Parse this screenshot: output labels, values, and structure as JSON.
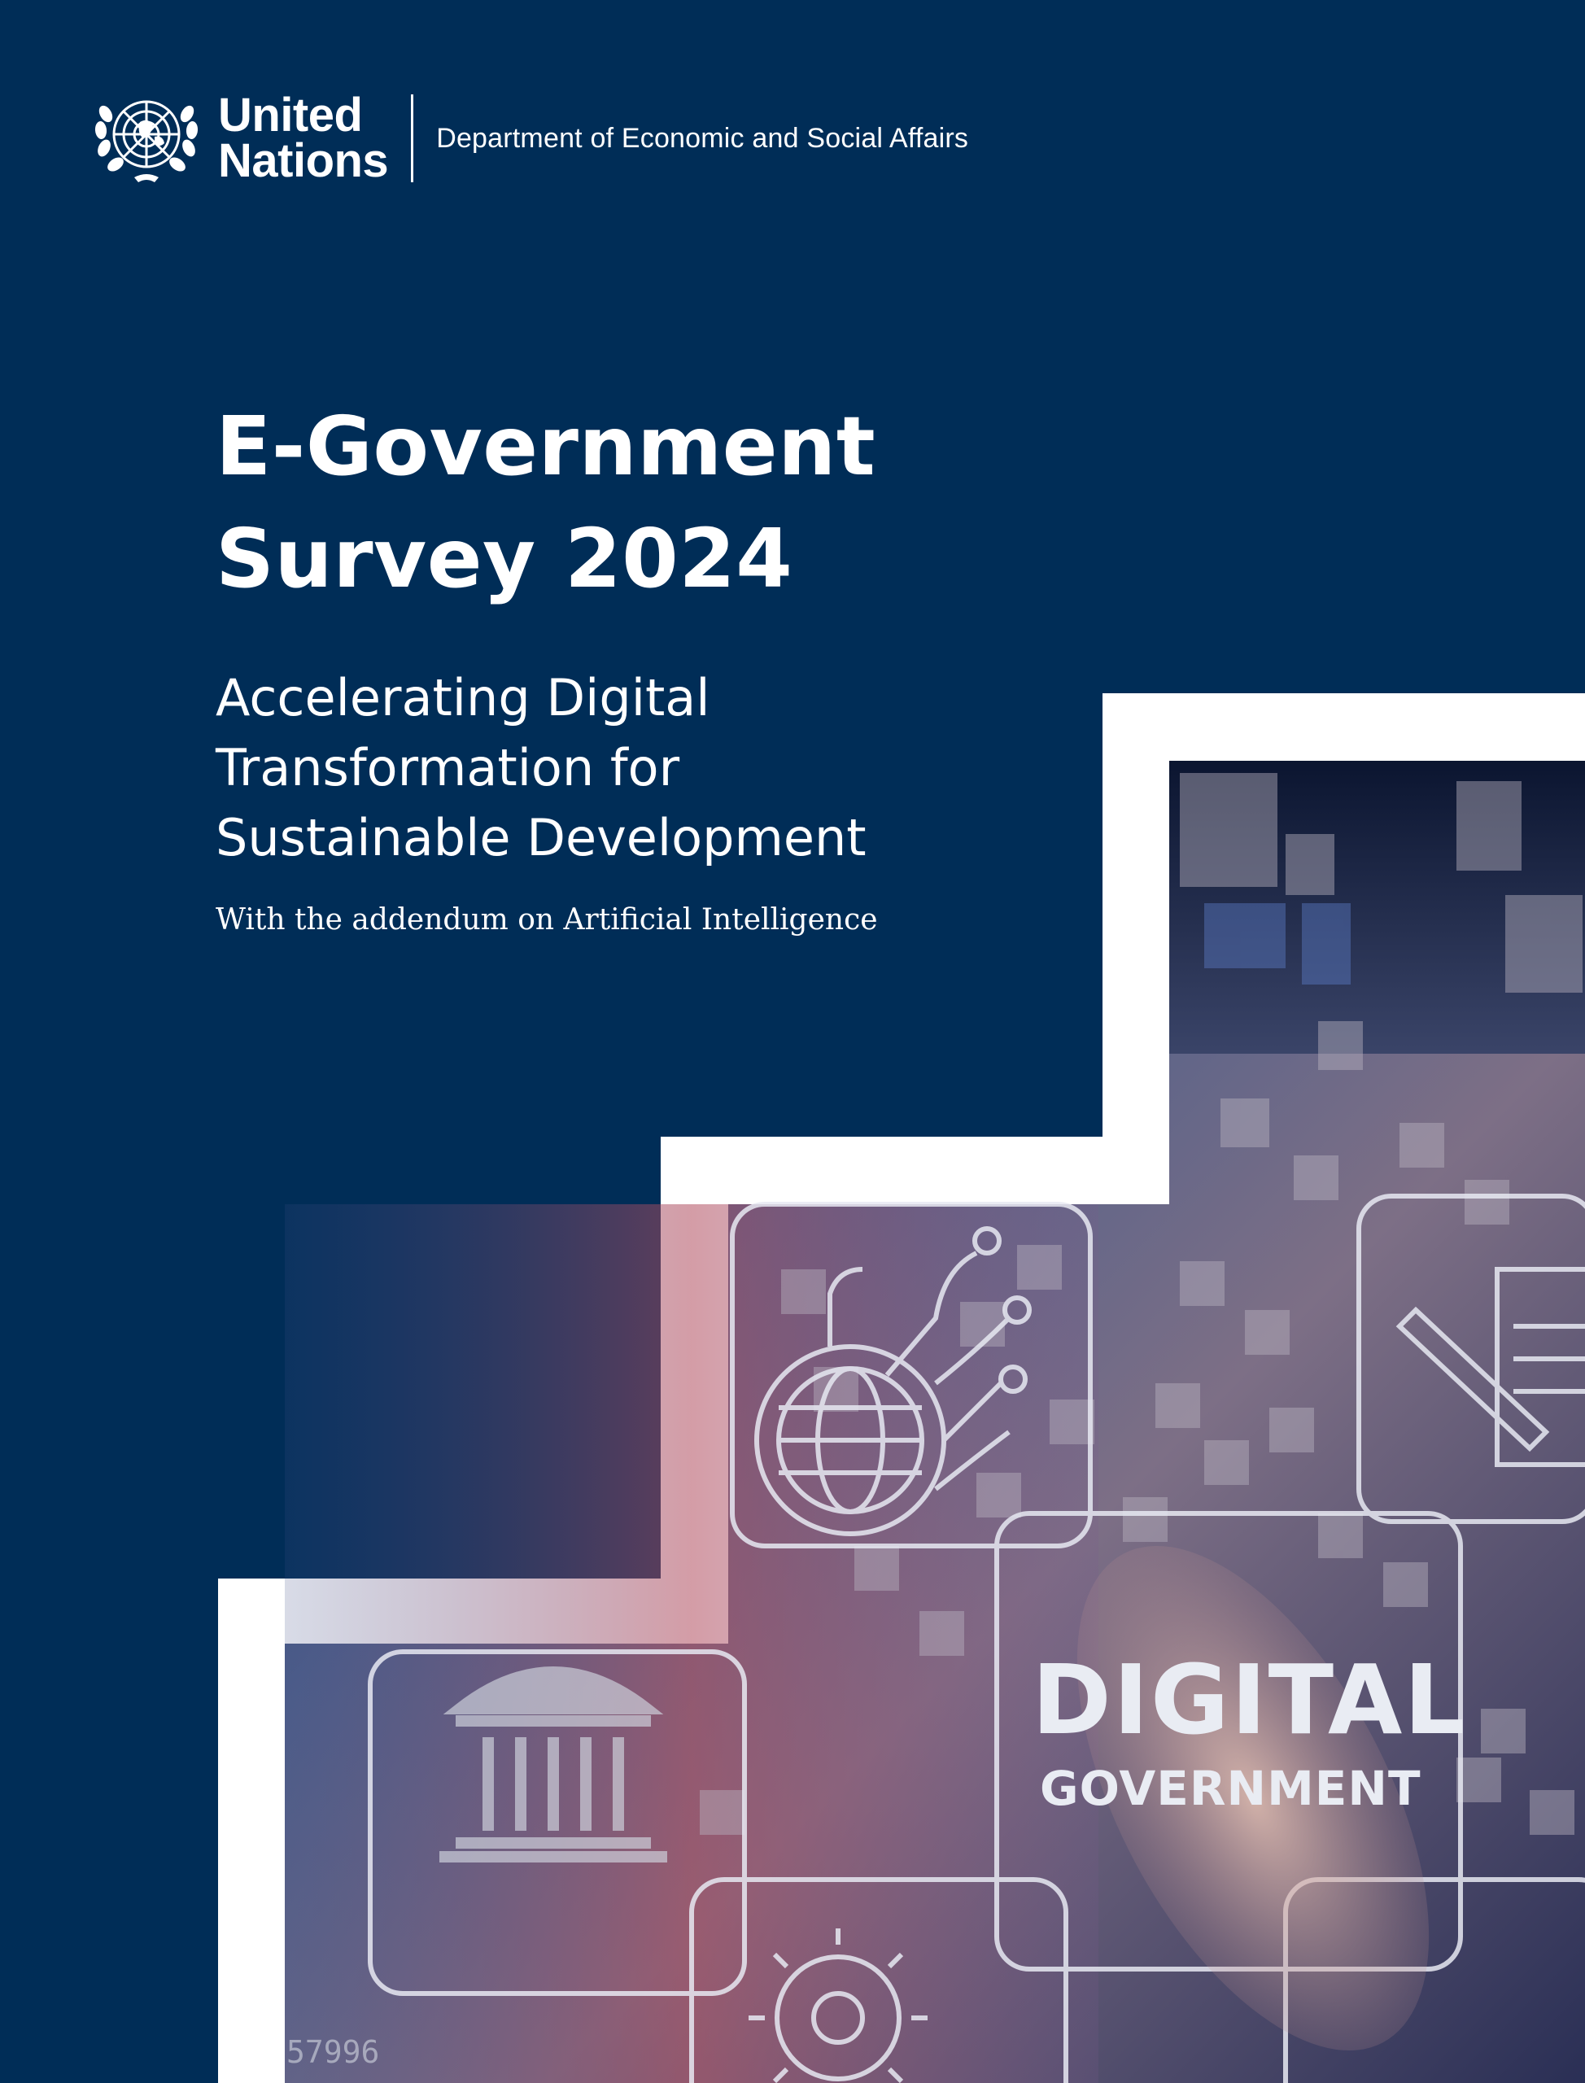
{
  "header": {
    "org_line1": "United",
    "org_line2": "Nations",
    "department": "Department of Economic and Social Affairs",
    "emblem_icon": "un-emblem-icon"
  },
  "title": {
    "line1": "E-Government",
    "line2": "Survey 2024"
  },
  "subtitle": {
    "line1": "Accelerating Digital",
    "line2": "Transformation for",
    "line3": "Sustainable  Development"
  },
  "addendum": "With the addendum on Artificial Intelligence",
  "photo": {
    "headline": "DIGITAL",
    "subheadline": "GOVERNMENT",
    "corner_number": "57996"
  },
  "colors": {
    "background": "#002D57",
    "text": "#ffffff",
    "frame": "#ffffff"
  }
}
